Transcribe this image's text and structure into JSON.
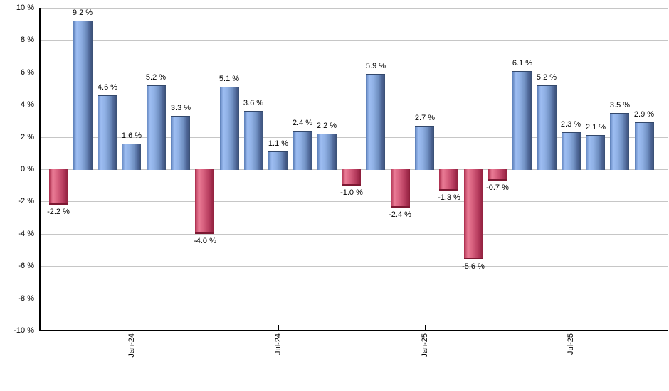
{
  "chart_data": {
    "type": "bar",
    "title": "",
    "xlabel": "",
    "ylabel": "",
    "ylim": [
      -10,
      10
    ],
    "y_tick_step": 2,
    "grid": "horizontal",
    "legend": "none",
    "values": [
      -2.2,
      9.2,
      4.6,
      1.6,
      5.2,
      3.3,
      -4.0,
      5.1,
      3.6,
      1.1,
      2.4,
      2.2,
      -1.0,
      5.9,
      -2.4,
      2.7,
      -1.3,
      -5.6,
      -0.7,
      6.1,
      5.2,
      2.3,
      2.1,
      3.5,
      2.9
    ],
    "bar_labels": [
      "-2.2 %",
      "9.2 %",
      "4.6 %",
      "1.6 %",
      "5.2 %",
      "3.3 %",
      "-4.0 %",
      "5.1 %",
      "3.6 %",
      "1.1 %",
      "2.4 %",
      "2.2 %",
      "-1.0 %",
      "5.9 %",
      "-2.4 %",
      "2.7 %",
      "-1.3 %",
      "-5.6 %",
      "-0.7 %",
      "6.1 %",
      "5.2 %",
      "2.3 %",
      "2.1 %",
      "3.5 %",
      "2.9 %"
    ],
    "y_tick_values": [
      10,
      8,
      6,
      4,
      2,
      0,
      -2,
      -4,
      -6,
      -8,
      -10
    ],
    "y_tick_labels": [
      "10 %",
      "8 %",
      "6 %",
      "4 %",
      "2 %",
      "0 %",
      "-2 %",
      "-4 %",
      "-6 %",
      "-8 %",
      "-10 %"
    ],
    "x_ticks": [
      {
        "label": "Jan-24",
        "bar_index": 3
      },
      {
        "label": "Jul-24",
        "bar_index": 9
      },
      {
        "label": "Jan-25",
        "bar_index": 15
      },
      {
        "label": "Jul-25",
        "bar_index": 21
      }
    ],
    "colors": {
      "positive_bar": "#7d9fd6",
      "negative_bar": "#c04668",
      "gridline": "#c6c6c6",
      "axis": "#000000",
      "label_text": "#000000",
      "background": "#ffffff"
    }
  }
}
